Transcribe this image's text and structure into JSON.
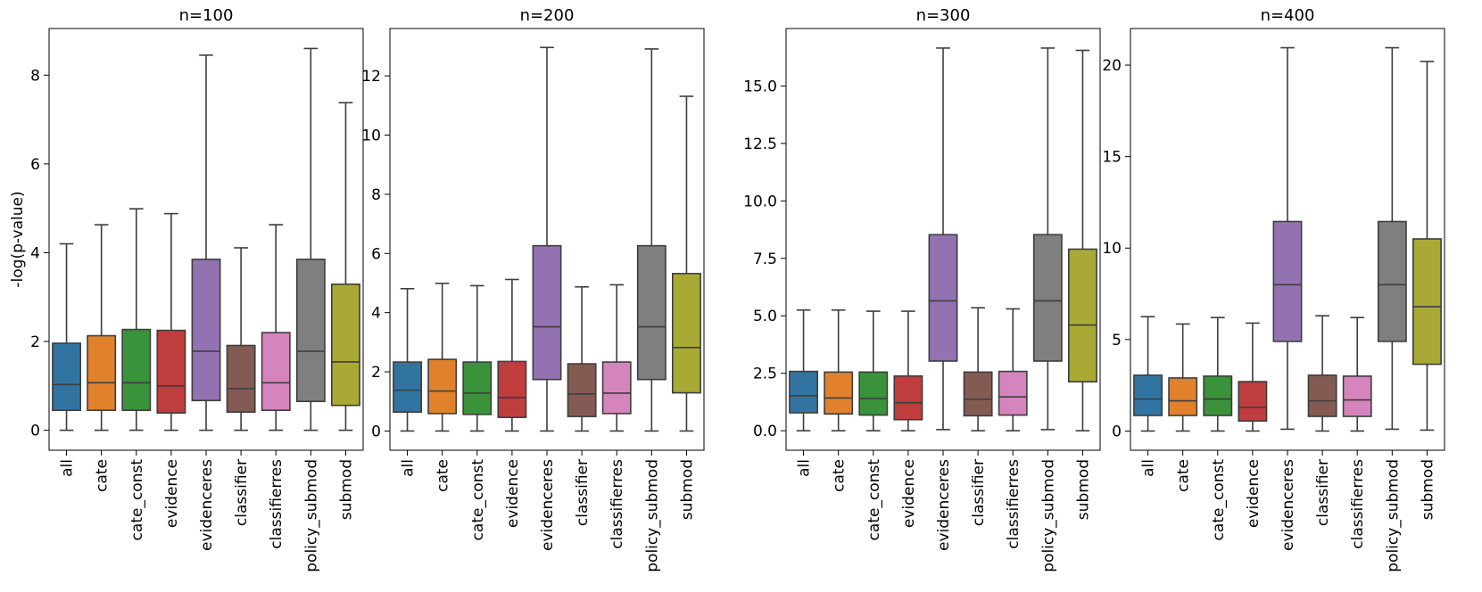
{
  "chart_data": [
    {
      "type": "box",
      "title": "n=100",
      "ylabel": "-log(p-value)",
      "categories": [
        "all",
        "cate",
        "cate_const",
        "evidence",
        "evidenceres",
        "classifier",
        "classifierres",
        "policy_submod",
        "submod"
      ],
      "ylim": [
        -0.45,
        9.05
      ],
      "yticks": [
        0,
        2,
        4,
        6,
        8
      ],
      "ytick_labels": [
        "0",
        "2",
        "4",
        "6",
        "8"
      ],
      "boxes": [
        {
          "whislo": 0,
          "q1": 0.45,
          "med": 1.03,
          "q3": 1.96,
          "whishi": 4.2
        },
        {
          "whislo": 0,
          "q1": 0.45,
          "med": 1.07,
          "q3": 2.13,
          "whishi": 4.63
        },
        {
          "whislo": 0,
          "q1": 0.45,
          "med": 1.07,
          "q3": 2.27,
          "whishi": 4.99
        },
        {
          "whislo": 0,
          "q1": 0.39,
          "med": 1.0,
          "q3": 2.25,
          "whishi": 4.88
        },
        {
          "whislo": 0,
          "q1": 0.67,
          "med": 1.78,
          "q3": 3.85,
          "whishi": 8.45
        },
        {
          "whislo": 0,
          "q1": 0.41,
          "med": 0.94,
          "q3": 1.91,
          "whishi": 4.11
        },
        {
          "whislo": 0,
          "q1": 0.45,
          "med": 1.07,
          "q3": 2.2,
          "whishi": 4.63
        },
        {
          "whislo": 0,
          "q1": 0.65,
          "med": 1.78,
          "q3": 3.85,
          "whishi": 8.6
        },
        {
          "whislo": 0,
          "q1": 0.56,
          "med": 1.54,
          "q3": 3.29,
          "whishi": 7.38
        }
      ]
    },
    {
      "type": "box",
      "title": "n=200",
      "ylabel": "",
      "categories": [
        "all",
        "cate",
        "cate_const",
        "evidence",
        "evidenceres",
        "classifier",
        "classifierres",
        "policy_submod",
        "submod"
      ],
      "ylim": [
        -0.65,
        13.6
      ],
      "yticks": [
        0,
        2,
        4,
        6,
        8,
        10,
        12
      ],
      "ytick_labels": [
        "0",
        "2",
        "4",
        "6",
        "8",
        "10",
        "12"
      ],
      "boxes": [
        {
          "whislo": 0,
          "q1": 0.64,
          "med": 1.38,
          "q3": 2.33,
          "whishi": 4.81
        },
        {
          "whislo": 0,
          "q1": 0.59,
          "med": 1.35,
          "q3": 2.42,
          "whishi": 4.99
        },
        {
          "whislo": 0,
          "q1": 0.56,
          "med": 1.28,
          "q3": 2.33,
          "whishi": 4.91
        },
        {
          "whislo": 0,
          "q1": 0.46,
          "med": 1.13,
          "q3": 2.35,
          "whishi": 5.12
        },
        {
          "whislo": 0,
          "q1": 1.74,
          "med": 3.52,
          "q3": 6.26,
          "whishi": 12.96
        },
        {
          "whislo": 0,
          "q1": 0.49,
          "med": 1.25,
          "q3": 2.27,
          "whishi": 4.87
        },
        {
          "whislo": 0,
          "q1": 0.59,
          "med": 1.28,
          "q3": 2.33,
          "whishi": 4.94
        },
        {
          "whislo": 0,
          "q1": 1.74,
          "med": 3.52,
          "q3": 6.26,
          "whishi": 12.91
        },
        {
          "whislo": 0,
          "q1": 1.29,
          "med": 2.82,
          "q3": 5.32,
          "whishi": 11.31
        }
      ]
    },
    {
      "type": "box",
      "title": "n=300",
      "ylabel": "",
      "categories": [
        "all",
        "cate",
        "cate_const",
        "evidence",
        "evidenceres",
        "classifier",
        "classifierres",
        "policy_submod",
        "submod"
      ],
      "ylim": [
        -0.85,
        17.5
      ],
      "yticks": [
        0.0,
        2.5,
        5.0,
        7.5,
        10.0,
        12.5,
        15.0
      ],
      "ytick_labels": [
        "0.0",
        "2.5",
        "5.0",
        "7.5",
        "10.0",
        "12.5",
        "15.0"
      ],
      "boxes": [
        {
          "whislo": 0,
          "q1": 0.78,
          "med": 1.52,
          "q3": 2.58,
          "whishi": 5.25
        },
        {
          "whislo": 0,
          "q1": 0.73,
          "med": 1.42,
          "q3": 2.55,
          "whishi": 5.25
        },
        {
          "whislo": 0,
          "q1": 0.68,
          "med": 1.4,
          "q3": 2.55,
          "whishi": 5.2
        },
        {
          "whislo": 0,
          "q1": 0.48,
          "med": 1.22,
          "q3": 2.38,
          "whishi": 5.2
        },
        {
          "whislo": 0.05,
          "q1": 3.03,
          "med": 5.65,
          "q3": 8.53,
          "whishi": 16.65
        },
        {
          "whislo": 0,
          "q1": 0.65,
          "med": 1.37,
          "q3": 2.55,
          "whishi": 5.35
        },
        {
          "whislo": 0,
          "q1": 0.68,
          "med": 1.47,
          "q3": 2.58,
          "whishi": 5.3
        },
        {
          "whislo": 0.05,
          "q1": 3.03,
          "med": 5.65,
          "q3": 8.53,
          "whishi": 16.65
        },
        {
          "whislo": 0,
          "q1": 2.13,
          "med": 4.6,
          "q3": 7.9,
          "whishi": 16.55
        }
      ]
    },
    {
      "type": "box",
      "title": "n=400",
      "ylabel": "",
      "categories": [
        "all",
        "cate",
        "cate_const",
        "evidence",
        "evidenceres",
        "classifier",
        "classifierres",
        "policy_submod",
        "submod"
      ],
      "ylim": [
        -1.05,
        22.0
      ],
      "yticks": [
        0,
        5,
        10,
        15,
        20
      ],
      "ytick_labels": [
        "0",
        "5",
        "10",
        "15",
        "20"
      ],
      "boxes": [
        {
          "whislo": 0,
          "q1": 0.85,
          "med": 1.75,
          "q3": 3.05,
          "whishi": 6.25
        },
        {
          "whislo": 0,
          "q1": 0.85,
          "med": 1.65,
          "q3": 2.9,
          "whishi": 5.85
        },
        {
          "whislo": 0,
          "q1": 0.85,
          "med": 1.75,
          "q3": 3.0,
          "whishi": 6.2
        },
        {
          "whislo": 0,
          "q1": 0.55,
          "med": 1.3,
          "q3": 2.7,
          "whishi": 5.9
        },
        {
          "whislo": 0.1,
          "q1": 4.9,
          "med": 8.0,
          "q3": 11.45,
          "whishi": 20.95
        },
        {
          "whislo": 0,
          "q1": 0.8,
          "med": 1.65,
          "q3": 3.05,
          "whishi": 6.3
        },
        {
          "whislo": 0,
          "q1": 0.8,
          "med": 1.7,
          "q3": 3.0,
          "whishi": 6.2
        },
        {
          "whislo": 0.1,
          "q1": 4.9,
          "med": 8.0,
          "q3": 11.45,
          "whishi": 20.95
        },
        {
          "whislo": 0.05,
          "q1": 3.65,
          "med": 6.8,
          "q3": 10.5,
          "whishi": 20.2
        }
      ]
    }
  ],
  "colors": [
    "#3274a1",
    "#e1812c",
    "#3a923a",
    "#c03d3e",
    "#9372b2",
    "#845b53",
    "#d684bd",
    "#7f7f7f",
    "#a9aa35"
  ],
  "line_color": "#3d3d3d",
  "grid": false,
  "legend": "none"
}
